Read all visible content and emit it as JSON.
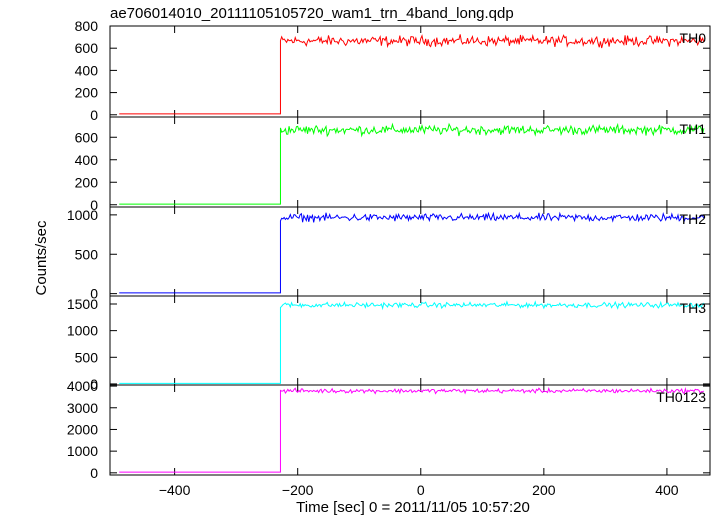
{
  "chart_data": {
    "type": "line",
    "title": "ae706014010_20111105105720_wam1_trn_4band_long.qdp",
    "xlabel": "Time [sec] 0 = 2011/11/05 10:57:20",
    "ylabel": "Counts/sec",
    "xlim": [
      -505,
      470
    ],
    "x_ticks": [
      -400,
      -200,
      0,
      200,
      400
    ],
    "x_tick_labels": [
      "−400",
      "−200",
      "0",
      "200",
      "400"
    ],
    "step_time": -228,
    "t_start": -490,
    "t_end": 460,
    "series": [
      {
        "name": "TH0",
        "color": "#ff0000",
        "ylim": [
          -20,
          800
        ],
        "yticks": [
          0,
          200,
          400,
          600,
          800
        ],
        "pre_level": 8,
        "post_level": 665,
        "noise": 28
      },
      {
        "name": "TH1",
        "color": "#00ff00",
        "ylim": [
          -20,
          780
        ],
        "yticks": [
          0,
          200,
          400,
          600
        ],
        "pre_level": 6,
        "post_level": 665,
        "noise": 26
      },
      {
        "name": "TH2",
        "color": "#0000ff",
        "ylim": [
          -30,
          1100
        ],
        "yticks": [
          0,
          500,
          1000
        ],
        "pre_level": 10,
        "post_level": 965,
        "noise": 30
      },
      {
        "name": "TH3",
        "color": "#00ffff",
        "ylim": [
          -20,
          1650
        ],
        "yticks": [
          0,
          500,
          1000,
          1500
        ],
        "pre_level": 10,
        "post_level": 1480,
        "noise": 30
      },
      {
        "name": "TH0123",
        "color": "#ff00ff",
        "ylim": [
          -100,
          4050
        ],
        "yticks": [
          0,
          1000,
          2000,
          3000,
          4000
        ],
        "pre_level": 30,
        "post_level": 3780,
        "noise": 60
      }
    ]
  }
}
